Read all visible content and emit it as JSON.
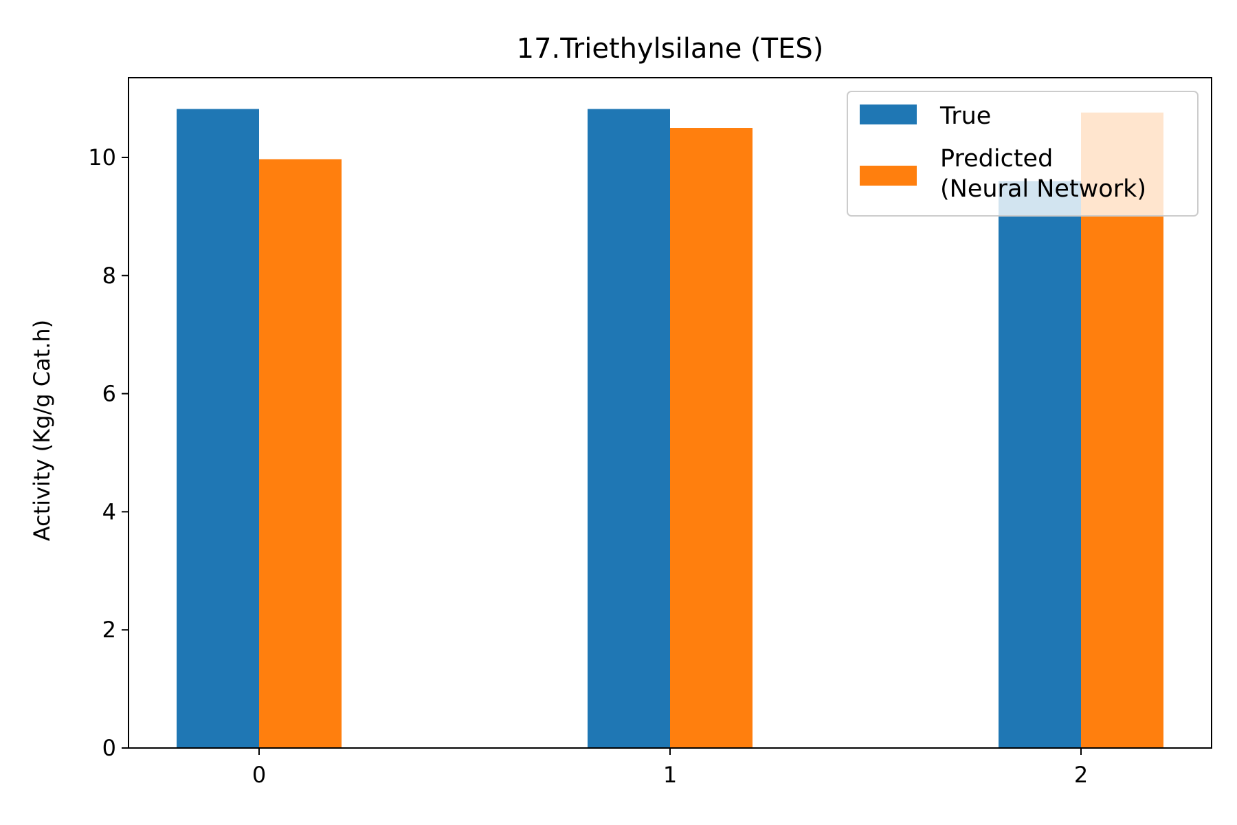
{
  "chart_data": {
    "type": "bar",
    "title": "17.Triethylsilane (TES)",
    "xlabel": "",
    "ylabel": "Activity (Kg/g Cat.h)",
    "categories": [
      "0",
      "1",
      "2"
    ],
    "ylim": [
      0,
      11.35
    ],
    "yticks": [
      0,
      2,
      4,
      6,
      8,
      10
    ],
    "grid": false,
    "legend_position": "upper right",
    "series": [
      {
        "name": "True",
        "color": "#1f77b4",
        "values": [
          10.82,
          10.82,
          9.6
        ]
      },
      {
        "name_lines": [
          "Predicted",
          "(Neural Network)"
        ],
        "color": "#ff7f0e",
        "values": [
          9.97,
          10.5,
          10.76
        ]
      }
    ]
  }
}
